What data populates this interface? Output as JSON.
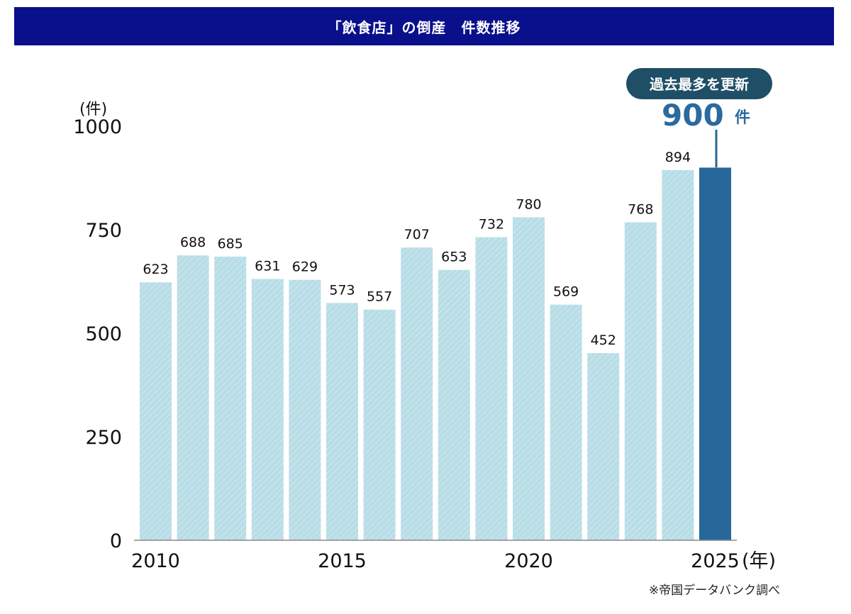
{
  "title": "「飲食店」の倒産　件数推移",
  "chart_data": {
    "type": "bar",
    "title": "「飲食店」の倒産　件数推移",
    "categories": [
      "2010",
      "2011",
      "2012",
      "2013",
      "2014",
      "2015",
      "2016",
      "2017",
      "2018",
      "2019",
      "2020",
      "2021",
      "2022",
      "2023",
      "2024",
      "2025"
    ],
    "values": [
      623,
      688,
      685,
      631,
      629,
      573,
      557,
      707,
      653,
      732,
      780,
      569,
      452,
      768,
      894,
      900
    ],
    "data_labels": [
      "623",
      "688",
      "685",
      "631",
      "629",
      "573",
      "557",
      "707",
      "653",
      "732",
      "780",
      "569",
      "452",
      "768",
      "894",
      ""
    ],
    "x_tick_labels": [
      {
        "index": 0,
        "label": "2010"
      },
      {
        "index": 5,
        "label": "2015"
      },
      {
        "index": 10,
        "label": "2020"
      },
      {
        "index": 15,
        "label": "2025"
      }
    ],
    "y_ticks": [
      0,
      250,
      500,
      750,
      1000
    ],
    "ylim": [
      0,
      1000
    ],
    "ylabel": "(件)",
    "xlabel": "(年)",
    "highlight_index": 15,
    "colors": {
      "bar": "#b8dde6",
      "bar_pattern": "#ffffff",
      "highlight": "#276799",
      "banner": "#0a0f8c",
      "callout_bg": "#1f4f66",
      "callout_value": "#2a6a9e"
    }
  },
  "callout": {
    "badge": "過去最多を更新",
    "value": "900",
    "unit": "件"
  },
  "source": "※帝国データバンク調べ"
}
